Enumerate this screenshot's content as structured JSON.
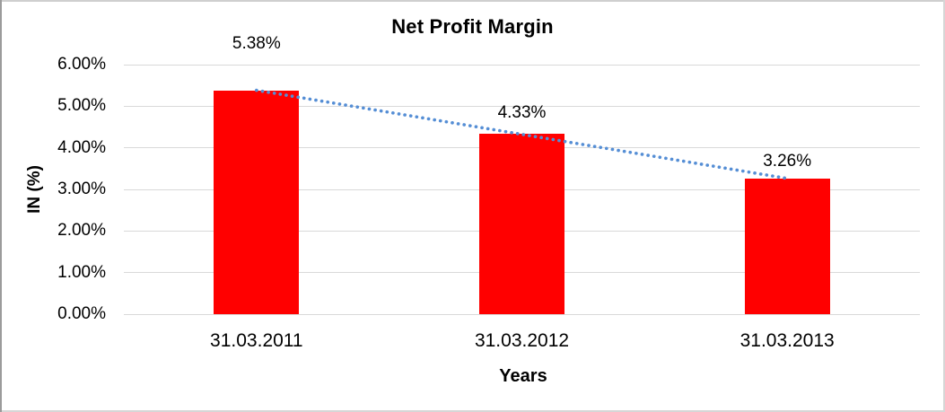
{
  "chart_data": {
    "type": "bar",
    "title": "Net Profit Margin",
    "xlabel": "Years",
    "ylabel": "IN (%)",
    "categories": [
      "31.03.2011",
      "31.03.2012",
      "31.03.2013"
    ],
    "values": [
      5.38,
      4.33,
      3.26
    ],
    "data_labels": [
      "5.38%",
      "4.33%",
      "3.26%"
    ],
    "ylim": [
      0,
      6
    ],
    "ytick_step": 1,
    "ytick_labels": [
      "0.00%",
      "1.00%",
      "2.00%",
      "3.00%",
      "4.00%",
      "5.00%",
      "6.00%"
    ],
    "grid": true,
    "legend": "none",
    "bar_color": "#FF0000",
    "gridline_color": "#D9D9D9",
    "text_color": "#000000",
    "trendline": {
      "series": "Net Profit Margin",
      "fit": "linear",
      "style": "dotted",
      "color": "#558ED5"
    }
  }
}
